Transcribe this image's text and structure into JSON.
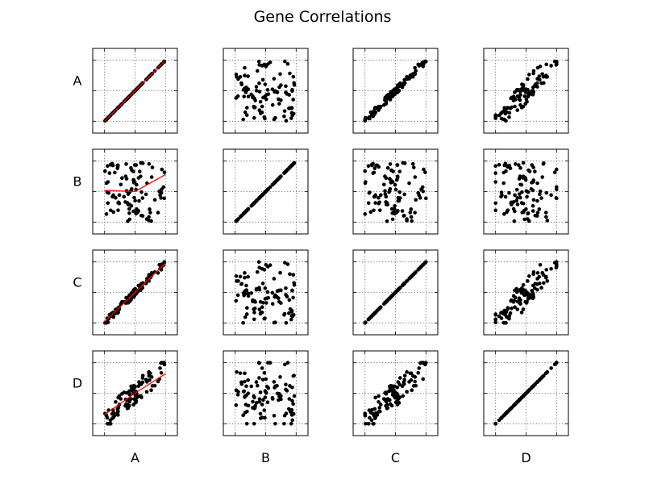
{
  "chart_data": {
    "type": "scatter",
    "title": "Gene Correlations",
    "variables": [
      "A",
      "B",
      "C",
      "D"
    ],
    "row_labels": [
      "A",
      "B",
      "C",
      "D"
    ],
    "col_labels": [
      "A",
      "B",
      "C",
      "D"
    ],
    "axis_range": [
      0,
      1
    ],
    "ticks": [
      0,
      0.5,
      1
    ],
    "grid": true,
    "point_count_per_panel": 100,
    "point_color": "#000000",
    "fit_line_color": "#ff0000",
    "panels": [
      {
        "row": "A",
        "col": "A",
        "relation": "identity",
        "fit_line": [
          [
            0.0,
            0.0
          ],
          [
            1.0,
            1.0
          ]
        ]
      },
      {
        "row": "A",
        "col": "B",
        "relation": "uncorrelated"
      },
      {
        "row": "A",
        "col": "C",
        "relation": "strong positive"
      },
      {
        "row": "A",
        "col": "D",
        "relation": "moderate positive"
      },
      {
        "row": "B",
        "col": "A",
        "relation": "uncorrelated",
        "fit_line": [
          [
            0.0,
            0.52
          ],
          [
            0.5,
            0.5
          ],
          [
            1.0,
            0.78
          ]
        ]
      },
      {
        "row": "B",
        "col": "B",
        "relation": "identity"
      },
      {
        "row": "B",
        "col": "C",
        "relation": "uncorrelated"
      },
      {
        "row": "B",
        "col": "D",
        "relation": "uncorrelated"
      },
      {
        "row": "C",
        "col": "A",
        "relation": "strong positive",
        "fit_line": [
          [
            0.0,
            0.02
          ],
          [
            0.45,
            0.45
          ],
          [
            1.0,
            0.98
          ]
        ]
      },
      {
        "row": "C",
        "col": "B",
        "relation": "uncorrelated"
      },
      {
        "row": "C",
        "col": "C",
        "relation": "identity"
      },
      {
        "row": "C",
        "col": "D",
        "relation": "moderate positive"
      },
      {
        "row": "D",
        "col": "A",
        "relation": "moderate positive",
        "fit_line": [
          [
            0.0,
            0.15
          ],
          [
            0.5,
            0.5
          ],
          [
            1.0,
            0.82
          ]
        ]
      },
      {
        "row": "D",
        "col": "B",
        "relation": "uncorrelated"
      },
      {
        "row": "D",
        "col": "C",
        "relation": "moderate positive"
      },
      {
        "row": "D",
        "col": "D",
        "relation": "identity"
      }
    ]
  }
}
